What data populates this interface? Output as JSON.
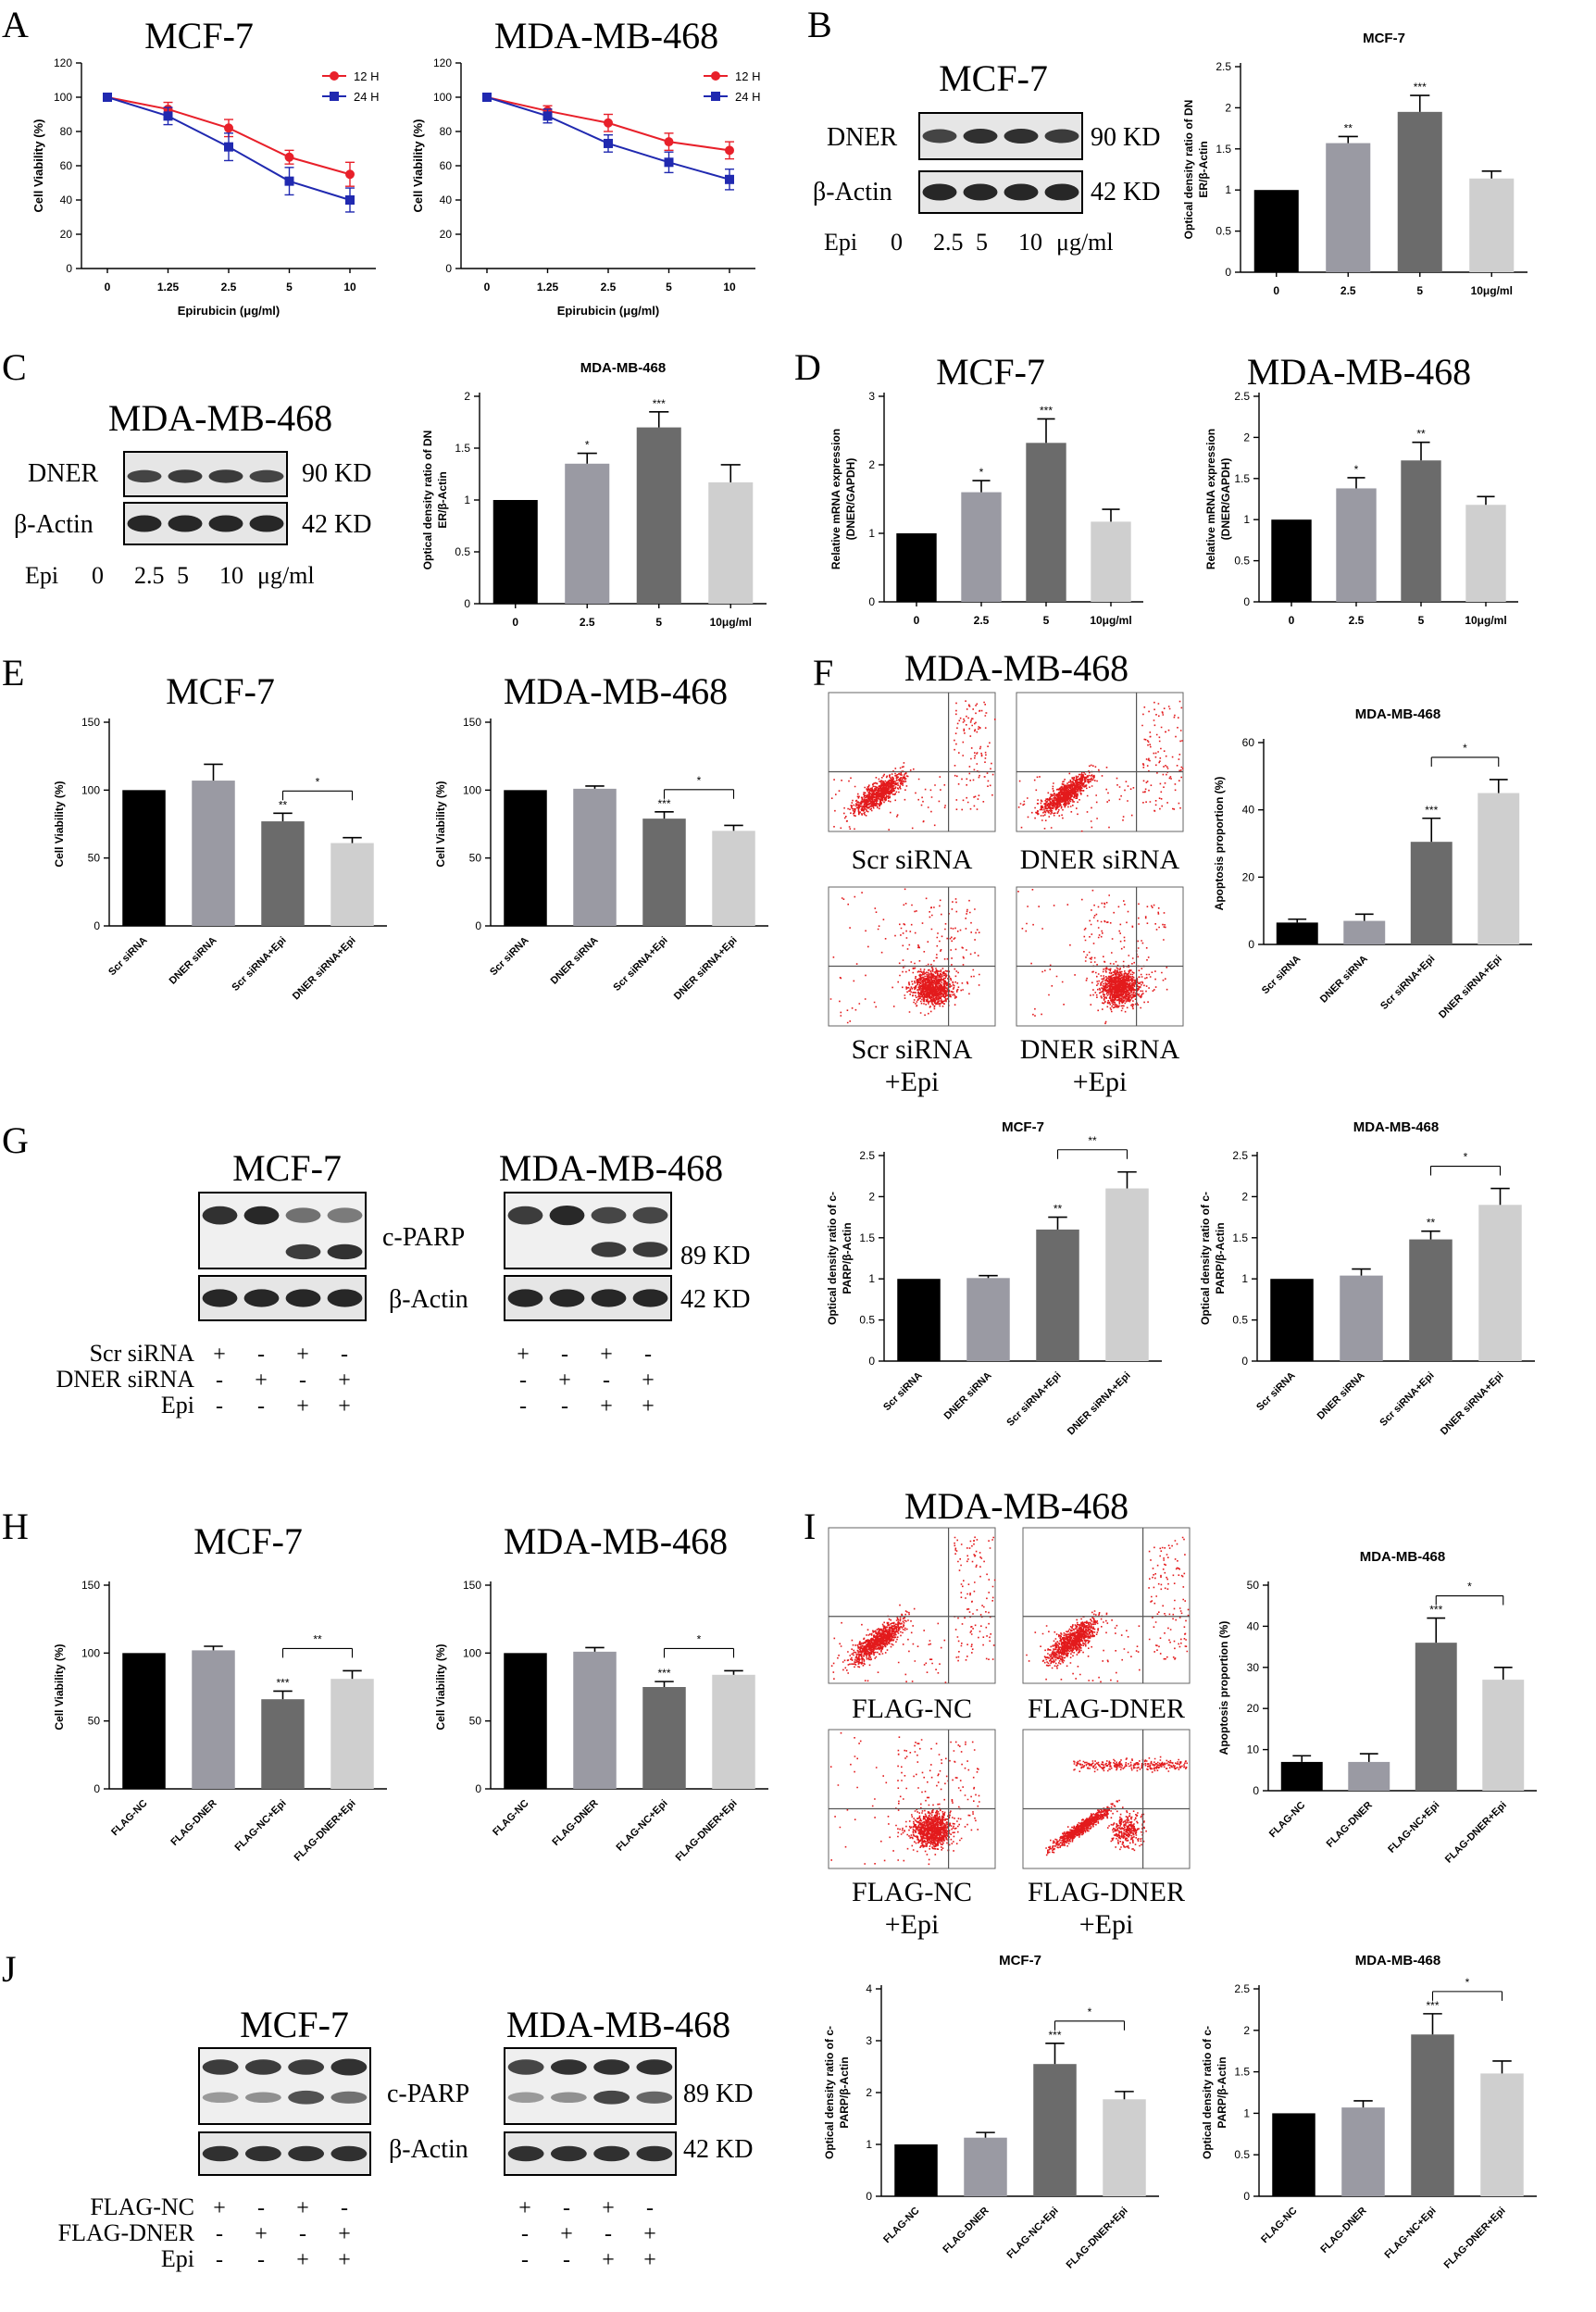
{
  "colors": {
    "red": "#e8202a",
    "blue": "#2029b0",
    "bar_black": "#000000",
    "bar_mid": "#9a9aa3",
    "bar_dark": "#6b6b6b",
    "bar_light": "#cfcfcf",
    "flow": "#e31a1c"
  },
  "panels": {
    "A": "A",
    "B": "B",
    "C": "C",
    "D": "D",
    "E": "E",
    "F": "F",
    "G": "G",
    "H": "H",
    "I": "I",
    "J": "J"
  },
  "blots": {
    "mcf7": "MCF-7",
    "mda": "MDA-MB-468",
    "dner": "DNER",
    "actin": "β-Actin",
    "kd90": "90 KD",
    "kd42": "42 KD",
    "kd89": "89 KD",
    "cparp": "c-PARP",
    "epi": "Epi",
    "doses": [
      "0",
      "2.5",
      "5",
      "10"
    ],
    "dose_unit": "μg/ml",
    "scr": "Scr siRNA",
    "dner_si": "DNER siRNA",
    "flag_nc": "FLAG-NC",
    "flag_dner": "FLAG-DNER",
    "plus": "+",
    "minus": "-",
    "g_rows": [
      [
        "+",
        "-",
        "+",
        "-"
      ],
      [
        "-",
        "+",
        "-",
        "+"
      ],
      [
        "-",
        "-",
        "+",
        "+"
      ]
    ]
  },
  "flow": {
    "F_title": "MDA-MB-468",
    "F_labels": [
      "Scr siRNA",
      "DNER siRNA",
      "Scr siRNA",
      "DNER siRNA"
    ],
    "I_title": "MDA-MB-468",
    "I_labels": [
      "FLAG-NC",
      "FLAG-DNER",
      "FLAG-NC",
      "FLAG-DNER"
    ],
    "epi_suffix": "+Epi"
  },
  "chart_data": [
    {
      "id": "A1",
      "type": "line",
      "title": "MCF-7",
      "xlabel": "Epirubicin (μg/ml)",
      "ylabel": "Cell Viability (%)",
      "categories": [
        "0",
        "1.25",
        "2.5",
        "5",
        "10"
      ],
      "ylim": [
        0,
        120
      ],
      "yticks": [
        0,
        20,
        40,
        60,
        80,
        100,
        120
      ],
      "series": [
        {
          "name": "12 H",
          "values": [
            100,
            93,
            82,
            65,
            55
          ],
          "errors": [
            0,
            4,
            5,
            4,
            7
          ]
        },
        {
          "name": "24 H",
          "values": [
            100,
            89,
            71,
            51,
            40
          ],
          "errors": [
            0,
            5,
            8,
            8,
            7
          ]
        }
      ]
    },
    {
      "id": "A2",
      "type": "line",
      "title": "MDA-MB-468",
      "xlabel": "Epirubicin (μg/ml)",
      "ylabel": "Cell Viability (%)",
      "categories": [
        "0",
        "1.25",
        "2.5",
        "5",
        "10"
      ],
      "ylim": [
        0,
        120
      ],
      "yticks": [
        0,
        20,
        40,
        60,
        80,
        100,
        120
      ],
      "series": [
        {
          "name": "12 H",
          "values": [
            100,
            92,
            85,
            74,
            69
          ],
          "errors": [
            0,
            3,
            5,
            5,
            5
          ]
        },
        {
          "name": "24 H",
          "values": [
            100,
            89,
            73,
            62,
            52
          ],
          "errors": [
            0,
            4,
            5,
            6,
            6
          ]
        }
      ]
    },
    {
      "id": "B",
      "type": "bar",
      "title": "MCF-7",
      "ylabel": "Optical density ratio of DNER/β-Actin",
      "categories": [
        "0",
        "2.5",
        "5",
        "10μg/ml"
      ],
      "values": [
        1.0,
        1.57,
        1.95,
        1.14
      ],
      "errors": [
        0,
        0.08,
        0.2,
        0.09
      ],
      "sig": [
        "",
        "**",
        "***",
        ""
      ],
      "ylim": [
        0,
        2.5
      ],
      "yticks": [
        0,
        0.5,
        1.0,
        1.5,
        2.0,
        2.5
      ]
    },
    {
      "id": "C",
      "type": "bar",
      "title": "MDA-MB-468",
      "ylabel": "Optical density ratio of DNER/β-Actin",
      "categories": [
        "0",
        "2.5",
        "5",
        "10μg/ml"
      ],
      "values": [
        1.0,
        1.35,
        1.7,
        1.17
      ],
      "errors": [
        0,
        0.1,
        0.15,
        0.17
      ],
      "sig": [
        "",
        "*",
        "***",
        ""
      ],
      "ylim": [
        0,
        2.0
      ],
      "yticks": [
        0,
        0.5,
        1.0,
        1.5,
        2.0
      ]
    },
    {
      "id": "D1",
      "type": "bar",
      "title": "MCF-7",
      "ylabel": "Relative mRNA expression (DNER/GAPDH)",
      "categories": [
        "0",
        "2.5",
        "5",
        "10μg/ml"
      ],
      "values": [
        1.0,
        1.6,
        2.32,
        1.17
      ],
      "errors": [
        0,
        0.17,
        0.35,
        0.18
      ],
      "sig": [
        "",
        "*",
        "***",
        ""
      ],
      "ylim": [
        0,
        3
      ],
      "yticks": [
        0,
        1,
        2,
        3
      ]
    },
    {
      "id": "D2",
      "type": "bar",
      "title": "MDA-MB-468",
      "ylabel": "Relative mRNA expression (DNER/GAPDH)",
      "categories": [
        "0",
        "2.5",
        "5",
        "10μg/ml"
      ],
      "values": [
        1.0,
        1.38,
        1.72,
        1.18
      ],
      "errors": [
        0,
        0.13,
        0.22,
        0.1
      ],
      "sig": [
        "",
        "*",
        "**",
        ""
      ],
      "ylim": [
        0,
        2.5
      ],
      "yticks": [
        0,
        0.5,
        1.0,
        1.5,
        2.0,
        2.5
      ]
    },
    {
      "id": "E1",
      "type": "bar",
      "title": "MCF-7",
      "ylabel": "Cell Viability (%)",
      "categories": [
        "Scr siRNA",
        "DNER siRNA",
        "Scr siRNA+Epi",
        "DNER siRNA+Epi"
      ],
      "values": [
        100,
        107,
        77,
        61
      ],
      "errors": [
        0,
        12,
        6,
        4
      ],
      "sig": [
        "",
        "",
        "**",
        ""
      ],
      "bracket": {
        "from": 2,
        "to": 3,
        "label": "*"
      },
      "ylim": [
        0,
        150
      ],
      "yticks": [
        0,
        50,
        100,
        150
      ]
    },
    {
      "id": "E2",
      "type": "bar",
      "title": "MDA-MB-468",
      "ylabel": "Cell Viability (%)",
      "categories": [
        "Scr siRNA",
        "DNER siRNA",
        "Scr siRNA+Epi",
        "DNER siRNA+Epi"
      ],
      "values": [
        100,
        101,
        79,
        70
      ],
      "errors": [
        0,
        2,
        5,
        4
      ],
      "sig": [
        "",
        "",
        "***",
        ""
      ],
      "bracket": {
        "from": 2,
        "to": 3,
        "label": "*"
      },
      "ylim": [
        0,
        150
      ],
      "yticks": [
        0,
        50,
        100,
        150
      ]
    },
    {
      "id": "F",
      "type": "bar",
      "title": "MDA-MB-468",
      "ylabel": "Apoptosis proportion (%)",
      "categories": [
        "Scr siRNA",
        "DNER siRNA",
        "Scr siRNA+Epi",
        "DNER siRNA+Epi"
      ],
      "values": [
        6.5,
        7,
        30.5,
        45
      ],
      "errors": [
        1,
        2,
        7,
        4
      ],
      "sig": [
        "",
        "",
        "***",
        ""
      ],
      "bracket": {
        "from": 2,
        "to": 3,
        "label": "*"
      },
      "ylim": [
        0,
        60
      ],
      "yticks": [
        0,
        20,
        40,
        60
      ]
    },
    {
      "id": "G1",
      "type": "bar",
      "title": "MCF-7",
      "ylabel": "Optical density ratio of c-PARP/β-Actin",
      "categories": [
        "Scr siRNA",
        "DNER siRNA",
        "Scr siRNA+Epi",
        "DNER siRNA+Epi"
      ],
      "values": [
        1.0,
        1.01,
        1.6,
        2.1
      ],
      "errors": [
        0,
        0.03,
        0.15,
        0.2
      ],
      "sig": [
        "",
        "",
        "**",
        ""
      ],
      "bracket": {
        "from": 2,
        "to": 3,
        "label": "**"
      },
      "ylim": [
        0,
        2.5
      ],
      "yticks": [
        0,
        0.5,
        1.0,
        1.5,
        2.0,
        2.5
      ]
    },
    {
      "id": "G2",
      "type": "bar",
      "title": "MDA-MB-468",
      "ylabel": "Optical density ratio of c-PARP/β-Actin",
      "categories": [
        "Scr siRNA",
        "DNER siRNA",
        "Scr siRNA+Epi",
        "DNER siRNA+Epi"
      ],
      "values": [
        1.0,
        1.04,
        1.48,
        1.9
      ],
      "errors": [
        0,
        0.08,
        0.1,
        0.2
      ],
      "sig": [
        "",
        "",
        "**",
        ""
      ],
      "bracket": {
        "from": 2,
        "to": 3,
        "label": "*"
      },
      "ylim": [
        0,
        2.5
      ],
      "yticks": [
        0,
        0.5,
        1.0,
        1.5,
        2.0,
        2.5
      ]
    },
    {
      "id": "H1",
      "type": "bar",
      "title": "MCF-7",
      "ylabel": "Cell Viability (%)",
      "categories": [
        "FLAG-NC",
        "FLAG-DNER",
        "FLAG-NC+Epi",
        "FLAG-DNER+Epi"
      ],
      "values": [
        100,
        102,
        66,
        81
      ],
      "errors": [
        0,
        3,
        6,
        6
      ],
      "sig": [
        "",
        "",
        "***",
        ""
      ],
      "bracket": {
        "from": 2,
        "to": 3,
        "label": "**"
      },
      "ylim": [
        0,
        150
      ],
      "yticks": [
        0,
        50,
        100,
        150
      ]
    },
    {
      "id": "H2",
      "type": "bar",
      "title": "MDA-MB-468",
      "ylabel": "Cell Viability (%)",
      "categories": [
        "FLAG-NC",
        "FLAG-DNER",
        "FLAG-NC+Epi",
        "FLAG-DNER+Epi"
      ],
      "values": [
        100,
        101,
        75,
        84
      ],
      "errors": [
        0,
        3,
        4,
        3
      ],
      "sig": [
        "",
        "",
        "***",
        ""
      ],
      "bracket": {
        "from": 2,
        "to": 3,
        "label": "*"
      },
      "ylim": [
        0,
        150
      ],
      "yticks": [
        0,
        50,
        100,
        150
      ]
    },
    {
      "id": "I",
      "type": "bar",
      "title": "MDA-MB-468",
      "ylabel": "Apoptosis proportion (%)",
      "categories": [
        "FLAG-NC",
        "FLAG-DNER",
        "FLAG-NC+Epi",
        "FLAG-DNER+Epi"
      ],
      "values": [
        7,
        7,
        36,
        27
      ],
      "errors": [
        1.5,
        2,
        6,
        3
      ],
      "sig": [
        "",
        "",
        "***",
        ""
      ],
      "bracket": {
        "from": 2,
        "to": 3,
        "label": "*"
      },
      "ylim": [
        0,
        50
      ],
      "yticks": [
        0,
        10,
        20,
        30,
        40,
        50
      ]
    },
    {
      "id": "J1",
      "type": "bar",
      "title": "MCF-7",
      "ylabel": "Optical density ratio of c-PARP/β-Actin",
      "categories": [
        "FLAG-NC",
        "FLAG-DNER",
        "FLAG-NC+Epi",
        "FLAG-DNER+Epi"
      ],
      "values": [
        1.0,
        1.13,
        2.55,
        1.87
      ],
      "errors": [
        0,
        0.1,
        0.4,
        0.15
      ],
      "sig": [
        "",
        "",
        "***",
        ""
      ],
      "bracket": {
        "from": 2,
        "to": 3,
        "label": "*"
      },
      "ylim": [
        0,
        4
      ],
      "yticks": [
        0,
        1,
        2,
        3,
        4
      ]
    },
    {
      "id": "J2",
      "type": "bar",
      "title": "MDA-MB-468",
      "ylabel": "Optical density ratio of c-PARP/β-Actin",
      "categories": [
        "FLAG-NC",
        "FLAG-DNER",
        "FLAG-NC+Epi",
        "FLAG-DNER+Epi"
      ],
      "values": [
        1.0,
        1.07,
        1.95,
        1.48
      ],
      "errors": [
        0,
        0.08,
        0.25,
        0.15
      ],
      "sig": [
        "",
        "",
        "***",
        ""
      ],
      "bracket": {
        "from": 2,
        "to": 3,
        "label": "*"
      },
      "ylim": [
        0,
        2.5
      ],
      "yticks": [
        0,
        0.5,
        1.0,
        1.5,
        2.0,
        2.5
      ]
    }
  ]
}
